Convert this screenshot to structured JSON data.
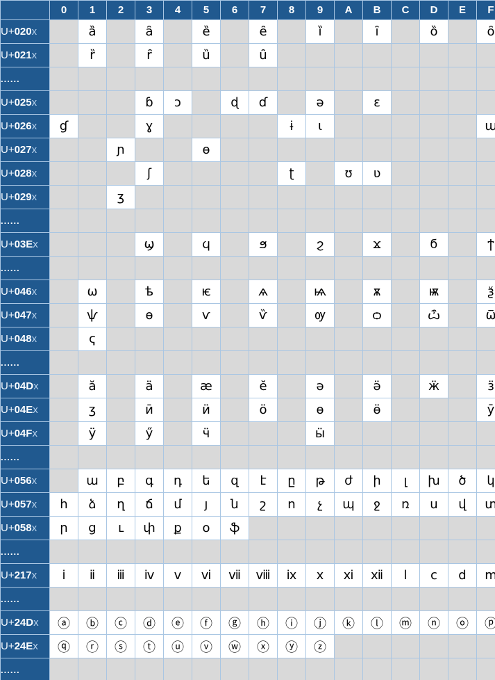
{
  "colors": {
    "header_bg": "#20598f",
    "grid_line": "#a9c6e3",
    "empty_cell_bg": "#d9d9d9",
    "filled_cell_bg": "#ffffff",
    "header_text": "#ffffff",
    "label_suffix_text": "#b9d2ec",
    "char_text": "#000000"
  },
  "table": {
    "corner_label": "",
    "column_headers": [
      "0",
      "1",
      "2",
      "3",
      "4",
      "5",
      "6",
      "7",
      "8",
      "9",
      "A",
      "B",
      "C",
      "D",
      "E",
      "F"
    ],
    "ellipsis_label": "......",
    "rows": [
      {
        "label": "U+020x",
        "prefix": "U+",
        "digits": "020",
        "suffix": "x",
        "cells": [
          "",
          "ȁ",
          "",
          "ȃ",
          "",
          "ȅ",
          "",
          "ȇ",
          "",
          "ȉ",
          "",
          "ȋ",
          "",
          "ȍ",
          "",
          "ȏ"
        ]
      },
      {
        "label": "U+021x",
        "prefix": "U+",
        "digits": "021",
        "suffix": "x",
        "cells": [
          "",
          "ȑ",
          "",
          "ȓ",
          "",
          "ȕ",
          "",
          "ȗ",
          "",
          "",
          "",
          "",
          "",
          "",
          "",
          ""
        ]
      },
      {
        "label": "......",
        "ellipsis": true,
        "cells": [
          "",
          "",
          "",
          "",
          "",
          "",
          "",
          "",
          "",
          "",
          "",
          "",
          "",
          "",
          "",
          ""
        ]
      },
      {
        "label": "U+025x",
        "prefix": "U+",
        "digits": "025",
        "suffix": "x",
        "cells": [
          "",
          "",
          "",
          "ɓ",
          "ɔ",
          "",
          "ɖ",
          "ɗ",
          "",
          "ə",
          "",
          "ɛ",
          "",
          "",
          "",
          ""
        ]
      },
      {
        "label": "U+026x",
        "prefix": "U+",
        "digits": "026",
        "suffix": "x",
        "cells": [
          "ɠ",
          "",
          "",
          "ɣ",
          "",
          "",
          "",
          "",
          "ɨ",
          "ɩ",
          "",
          "",
          "",
          "",
          "",
          "ɯ"
        ]
      },
      {
        "label": "U+027x",
        "prefix": "U+",
        "digits": "027",
        "suffix": "x",
        "cells": [
          "",
          "",
          "ɲ",
          "",
          "",
          "ɵ",
          "",
          "",
          "",
          "",
          "",
          "",
          "",
          "",
          "",
          ""
        ]
      },
      {
        "label": "U+028x",
        "prefix": "U+",
        "digits": "028",
        "suffix": "x",
        "cells": [
          "",
          "",
          "",
          "ʃ",
          "",
          "",
          "",
          "",
          "ʈ",
          "",
          "ʊ",
          "ʋ",
          "",
          "",
          "",
          ""
        ]
      },
      {
        "label": "U+029x",
        "prefix": "U+",
        "digits": "029",
        "suffix": "x",
        "cells": [
          "",
          "",
          "ʒ",
          "",
          "",
          "",
          "",
          "",
          "",
          "",
          "",
          "",
          "",
          "",
          "",
          ""
        ]
      },
      {
        "label": "......",
        "ellipsis": true,
        "cells": [
          "",
          "",
          "",
          "",
          "",
          "",
          "",
          "",
          "",
          "",
          "",
          "",
          "",
          "",
          "",
          ""
        ]
      },
      {
        "label": "U+03Ex",
        "prefix": "U+",
        "digits": "03E",
        "suffix": "x",
        "cells": [
          "",
          "",
          "",
          "ϣ",
          "",
          "ϥ",
          "",
          "ϧ",
          "",
          "ϩ",
          "",
          "ϫ",
          "",
          "ϭ",
          "",
          "ϯ"
        ]
      },
      {
        "label": "......",
        "ellipsis": true,
        "cells": [
          "",
          "",
          "",
          "",
          "",
          "",
          "",
          "",
          "",
          "",
          "",
          "",
          "",
          "",
          "",
          ""
        ]
      },
      {
        "label": "U+046x",
        "prefix": "U+",
        "digits": "046",
        "suffix": "x",
        "cells": [
          "",
          "ѡ",
          "",
          "ѣ",
          "",
          "ѥ",
          "",
          "ѧ",
          "",
          "ѩ",
          "",
          "ѫ",
          "",
          "ѭ",
          "",
          "ѯ"
        ]
      },
      {
        "label": "U+047x",
        "prefix": "U+",
        "digits": "047",
        "suffix": "x",
        "cells": [
          "",
          "ѱ",
          "",
          "ѳ",
          "",
          "ѵ",
          "",
          "ѷ",
          "",
          "ѹ",
          "",
          "ѻ",
          "",
          "ѽ",
          "",
          "ѿ"
        ]
      },
      {
        "label": "U+048x",
        "prefix": "U+",
        "digits": "048",
        "suffix": "x",
        "cells": [
          "",
          "ҁ",
          "",
          "",
          "",
          "",
          "",
          "",
          "",
          "",
          "",
          "",
          "",
          "",
          "",
          ""
        ]
      },
      {
        "label": "......",
        "ellipsis": true,
        "cells": [
          "",
          "",
          "",
          "",
          "",
          "",
          "",
          "",
          "",
          "",
          "",
          "",
          "",
          "",
          "",
          ""
        ]
      },
      {
        "label": "U+04Dx",
        "prefix": "U+",
        "digits": "04D",
        "suffix": "x",
        "cells": [
          "",
          "ӑ",
          "",
          "ӓ",
          "",
          "ӕ",
          "",
          "ӗ",
          "",
          "ә",
          "",
          "ӛ",
          "",
          "ӝ",
          "",
          "ӟ"
        ]
      },
      {
        "label": "U+04Ex",
        "prefix": "U+",
        "digits": "04E",
        "suffix": "x",
        "cells": [
          "",
          "ӡ",
          "",
          "ӣ",
          "",
          "ӥ",
          "",
          "ӧ",
          "",
          "ө",
          "",
          "ӫ",
          "",
          "",
          "",
          "ӯ"
        ]
      },
      {
        "label": "U+04Fx",
        "prefix": "U+",
        "digits": "04F",
        "suffix": "x",
        "cells": [
          "",
          "ӱ",
          "",
          "ӳ",
          "",
          "ӵ",
          "",
          "",
          "",
          "ӹ",
          "",
          "",
          "",
          "",
          "",
          ""
        ]
      },
      {
        "label": "......",
        "ellipsis": true,
        "cells": [
          "",
          "",
          "",
          "",
          "",
          "",
          "",
          "",
          "",
          "",
          "",
          "",
          "",
          "",
          "",
          ""
        ]
      },
      {
        "label": "U+056x",
        "prefix": "U+",
        "digits": "056",
        "suffix": "x",
        "cells": [
          "",
          "ա",
          "բ",
          "գ",
          "դ",
          "ե",
          "զ",
          "է",
          "ը",
          "թ",
          "ժ",
          "ի",
          "լ",
          "խ",
          "ծ",
          "կ"
        ]
      },
      {
        "label": "U+057x",
        "prefix": "U+",
        "digits": "057",
        "suffix": "x",
        "cells": [
          "հ",
          "ձ",
          "ղ",
          "ճ",
          "մ",
          "յ",
          "ն",
          "շ",
          "ո",
          "չ",
          "պ",
          "ջ",
          "ռ",
          "ս",
          "վ",
          "տ"
        ]
      },
      {
        "label": "U+058x",
        "prefix": "U+",
        "digits": "058",
        "suffix": "x",
        "cells": [
          "ր",
          "ց",
          "ւ",
          "փ",
          "ք",
          "օ",
          "ֆ",
          "",
          "",
          "",
          "",
          "",
          "",
          "",
          "",
          ""
        ]
      },
      {
        "label": "......",
        "ellipsis": true,
        "cells": [
          "",
          "",
          "",
          "",
          "",
          "",
          "",
          "",
          "",
          "",
          "",
          "",
          "",
          "",
          "",
          ""
        ]
      },
      {
        "label": "U+217x",
        "prefix": "U+",
        "digits": "217",
        "suffix": "x",
        "cells": [
          "ⅰ",
          "ⅱ",
          "ⅲ",
          "ⅳ",
          "ⅴ",
          "ⅵ",
          "ⅶ",
          "ⅷ",
          "ⅸ",
          "ⅹ",
          "ⅺ",
          "ⅻ",
          "ⅼ",
          "ⅽ",
          "ⅾ",
          "ⅿ"
        ]
      },
      {
        "label": "......",
        "ellipsis": true,
        "cells": [
          "",
          "",
          "",
          "",
          "",
          "",
          "",
          "",
          "",
          "",
          "",
          "",
          "",
          "",
          "",
          ""
        ]
      },
      {
        "label": "U+24Dx",
        "prefix": "U+",
        "digits": "24D",
        "suffix": "x",
        "cells": [
          "ⓐ",
          "ⓑ",
          "ⓒ",
          "ⓓ",
          "ⓔ",
          "ⓕ",
          "ⓖ",
          "ⓗ",
          "ⓘ",
          "ⓙ",
          "ⓚ",
          "ⓛ",
          "ⓜ",
          "ⓝ",
          "ⓞ",
          "ⓟ"
        ]
      },
      {
        "label": "U+24Ex",
        "prefix": "U+",
        "digits": "24E",
        "suffix": "x",
        "cells": [
          "ⓠ",
          "ⓡ",
          "ⓢ",
          "ⓣ",
          "ⓤ",
          "ⓥ",
          "ⓦ",
          "ⓧ",
          "ⓨ",
          "ⓩ",
          "",
          "",
          "",
          "",
          "",
          ""
        ]
      },
      {
        "label": "......",
        "ellipsis": true,
        "cells": [
          "",
          "",
          "",
          "",
          "",
          "",
          "",
          "",
          "",
          "",
          "",
          "",
          "",
          "",
          "",
          ""
        ]
      }
    ]
  }
}
